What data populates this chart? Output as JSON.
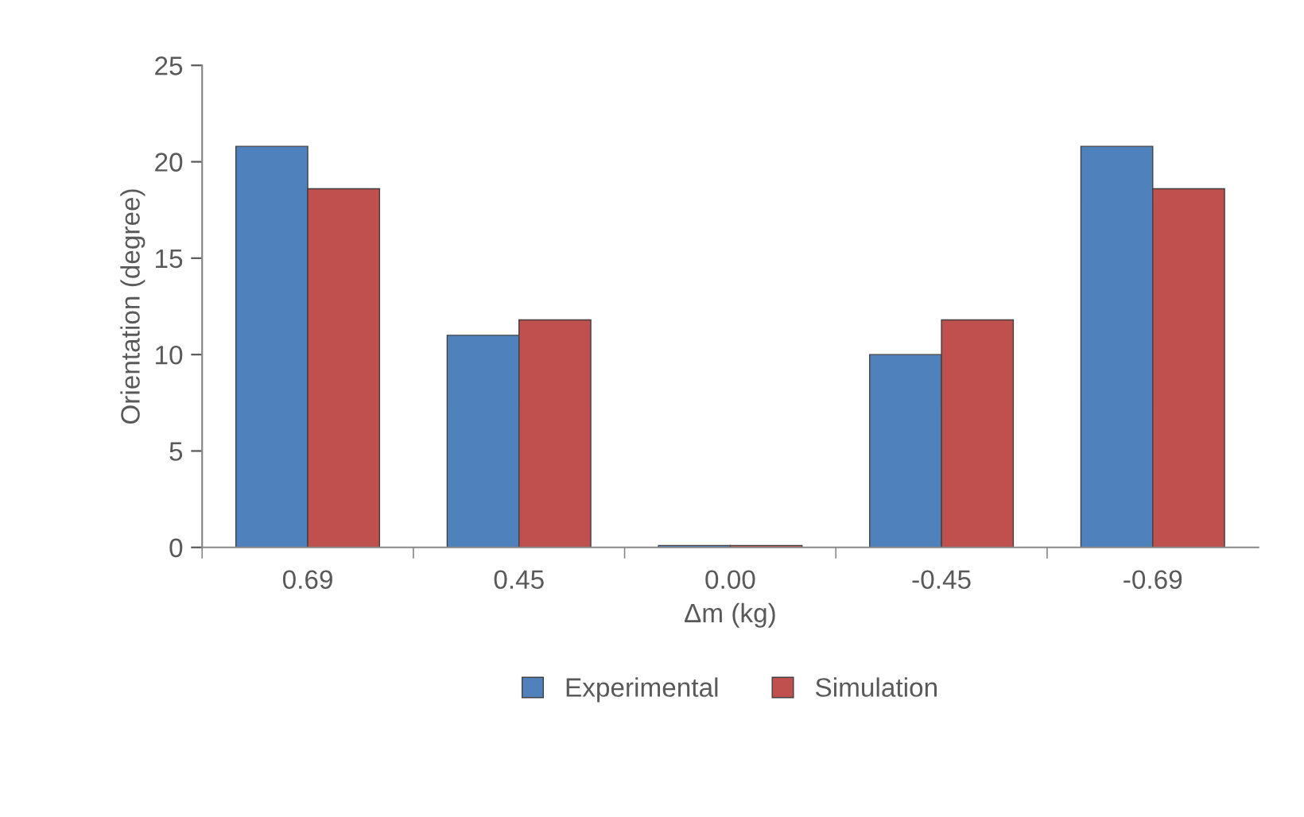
{
  "chart_data": {
    "type": "bar",
    "xlabel": "Δm (kg)",
    "ylabel": "Orientation (degree)",
    "categories": [
      "0.69",
      "0.45",
      "0.00",
      "-0.45",
      "-0.69"
    ],
    "series": [
      {
        "name": "Experimental",
        "color": "#4f81bd",
        "values": [
          20.8,
          11.0,
          0.1,
          10.0,
          20.8
        ]
      },
      {
        "name": "Simulation",
        "color": "#c0504d",
        "values": [
          18.6,
          11.8,
          0.1,
          11.8,
          18.6
        ]
      }
    ],
    "ylim": [
      0,
      25
    ],
    "yticks": [
      0,
      5,
      10,
      15,
      20,
      25
    ],
    "grid": false,
    "legend": "bottom"
  }
}
